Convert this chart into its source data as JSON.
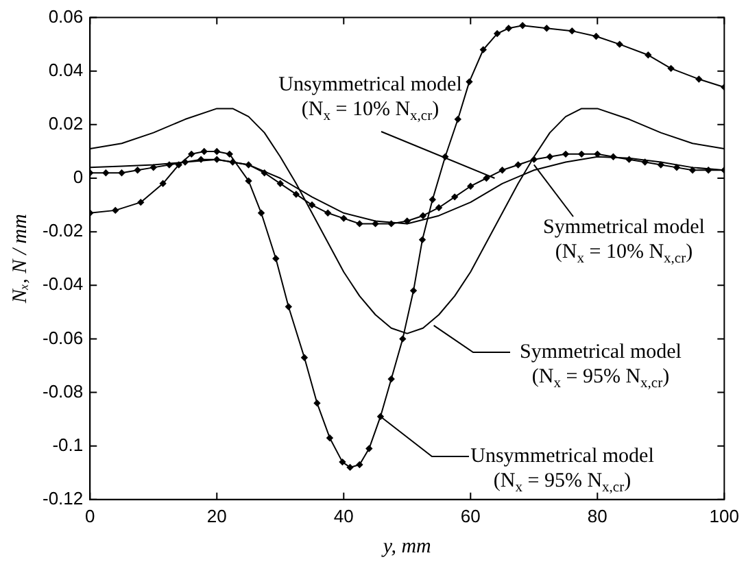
{
  "chart_data": {
    "type": "line",
    "xlabel": "y, mm",
    "ylabel": "Nₓ, N / mm",
    "xlim": [
      0,
      100
    ],
    "xticks": [
      0,
      20,
      40,
      60,
      80,
      100
    ],
    "ylim": [
      -0.12,
      0.06
    ],
    "yticks": [
      -0.12,
      -0.1,
      -0.08,
      -0.06,
      -0.04,
      -0.02,
      0,
      0.02,
      0.04,
      0.06
    ],
    "grid": false,
    "legend": false,
    "line_style": "solid",
    "series": [
      {
        "color": "#000000",
        "marker": "diamond",
        "x": [
          0,
          2.5,
          5,
          7.5,
          10,
          12.5,
          15,
          17.5,
          20,
          22.5,
          25,
          27.5,
          30,
          32.5,
          35,
          37.5,
          40,
          42.5,
          45,
          47.5,
          50,
          52.5,
          55,
          57.5,
          60,
          62.5,
          65,
          67.5,
          70,
          72.5,
          75,
          77.5,
          80,
          82.5,
          85,
          87.5,
          90,
          92.5,
          95,
          97.5,
          100
        ],
        "values": [
          0.002,
          0.002,
          0.002,
          0.003,
          0.004,
          0.005,
          0.006,
          0.007,
          0.007,
          0.006,
          0.005,
          0.002,
          -0.002,
          -0.006,
          -0.01,
          -0.013,
          -0.015,
          -0.017,
          -0.017,
          -0.017,
          -0.016,
          -0.014,
          -0.011,
          -0.007,
          -0.003,
          0,
          0.003,
          0.005,
          0.007,
          0.008,
          0.009,
          0.009,
          0.009,
          0.008,
          0.007,
          0.006,
          0.005,
          0.004,
          0.003,
          0.003,
          0.003
        ]
      },
      {
        "color": "#000000",
        "marker": "none",
        "x": [
          0,
          5,
          10,
          15,
          20,
          25,
          30,
          35,
          40,
          45,
          50,
          55,
          60,
          65,
          70,
          75,
          80,
          85,
          90,
          95,
          100
        ],
        "values": [
          0.004,
          0.0045,
          0.005,
          0.006,
          0.007,
          0.005,
          0,
          -0.007,
          -0.013,
          -0.016,
          -0.017,
          -0.014,
          -0.009,
          -0.002,
          0.003,
          0.006,
          0.008,
          0.0075,
          0.006,
          0.004,
          0.003
        ]
      },
      {
        "color": "#000000",
        "marker": "none",
        "x": [
          0,
          5,
          10,
          15,
          20,
          22.5,
          25,
          27.5,
          30,
          32.5,
          35,
          37.5,
          40,
          42.5,
          45,
          47.5,
          50,
          52.5,
          55,
          57.5,
          60,
          62.5,
          65,
          67.5,
          70,
          72.5,
          75,
          77.5,
          80,
          85,
          90,
          95,
          100
        ],
        "values": [
          0.011,
          0.013,
          0.017,
          0.022,
          0.026,
          0.026,
          0.023,
          0.017,
          0.008,
          -0.002,
          -0.013,
          -0.024,
          -0.035,
          -0.044,
          -0.051,
          -0.056,
          -0.058,
          -0.056,
          -0.051,
          -0.044,
          -0.035,
          -0.024,
          -0.013,
          -0.002,
          0.008,
          0.017,
          0.023,
          0.026,
          0.026,
          0.022,
          0.017,
          0.013,
          0.011
        ]
      },
      {
        "color": "#000000",
        "marker": "diamond",
        "x": [
          0,
          4,
          8,
          11.5,
          14,
          16,
          18,
          20,
          22,
          25,
          27,
          29.3,
          31.3,
          33.8,
          35.8,
          37.8,
          39.8,
          41,
          42.5,
          44,
          45.8,
          47.5,
          49.3,
          51,
          52.4,
          54,
          56,
          58,
          59.8,
          62,
          64.2,
          66,
          68.2,
          72,
          76,
          79.8,
          83.5,
          88,
          91.6,
          96,
          100
        ],
        "values": [
          -0.013,
          -0.012,
          -0.009,
          -0.002,
          0.005,
          0.009,
          0.01,
          0.01,
          0.009,
          -0.001,
          -0.013,
          -0.03,
          -0.048,
          -0.067,
          -0.084,
          -0.097,
          -0.106,
          -0.108,
          -0.107,
          -0.101,
          -0.089,
          -0.075,
          -0.06,
          -0.042,
          -0.023,
          -0.008,
          0.008,
          0.022,
          0.036,
          0.048,
          0.054,
          0.056,
          0.057,
          0.056,
          0.055,
          0.053,
          0.05,
          0.046,
          0.041,
          0.037,
          0.034
        ]
      }
    ],
    "annotations": [
      {
        "text": "Unsymmetrical model\n(N$_{x}$ = 10% N$_{x,cr}$)",
        "x": 63.8,
        "y": 0
      },
      {
        "text": "Symmetrical model\n(N$_{x}$ = 10% N$_{x,cr}$)",
        "x": 70,
        "y": 0.005
      },
      {
        "text": "Symmetrical model\n(N$_{x}$ = 95% N$_{x,cr}$)",
        "x": 54.2,
        "y": -0.055
      },
      {
        "text": "Unsymmetrical model\n(N$_{x}$ = 95% N$_{x,cr}$)",
        "x": 45.8,
        "y": -0.089
      }
    ]
  }
}
